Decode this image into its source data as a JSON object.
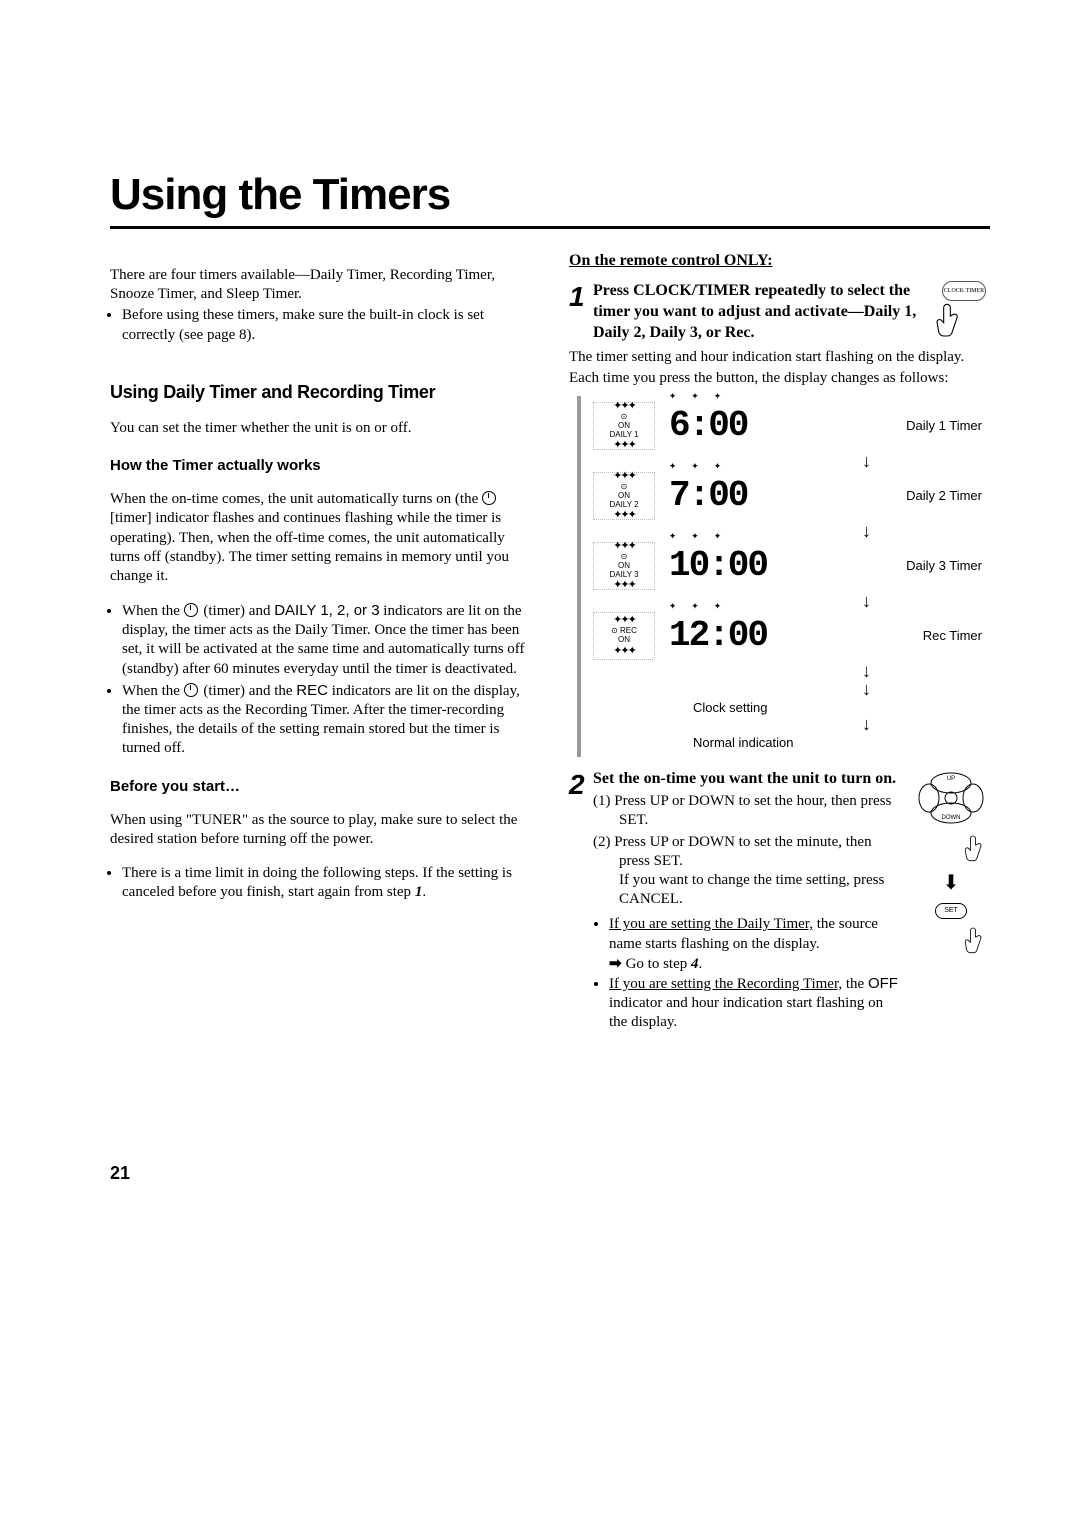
{
  "page": {
    "title": "Using the Timers",
    "page_number": "21",
    "font": {
      "body_family": "Times New Roman",
      "heading_family": "Arial",
      "body_size_pt": 11,
      "title_size_pt": 33
    },
    "colors": {
      "text": "#000000",
      "background": "#ffffff",
      "rule": "#000000",
      "side_rule": "#999999"
    }
  },
  "left": {
    "intro": "There are four timers available—Daily Timer, Recording Timer, Snooze Timer, and Sleep Timer.",
    "intro_bullet": "Before using these timers, make sure the built-in clock is set correctly (see page 8).",
    "section_heading": "Using Daily Timer and Recording Timer",
    "line1": "You can set the timer whether the unit is on or off.",
    "sub_heading_1": "How the Timer actually works",
    "para1_a": "When the on-time comes, the unit automatically turns on (the ",
    "para1_b": " [timer] indicator flashes and continues flashing while the timer is operating). Then, when the off-time comes, the unit automatically turns off (standby). The timer setting remains in memory until you change it.",
    "bullet1_a": "When the ",
    "bullet1_b": " (timer) and ",
    "bullet1_c": " indicators are lit on the display, the timer acts as the Daily Timer. Once the timer has been set, it will be activated at the same time and automatically turns off (standby) after 60 minutes everyday until the timer is deactivated.",
    "bullet1_daily": "DAILY 1, 2, or 3",
    "bullet2_a": "When the ",
    "bullet2_b": " (timer) and the ",
    "bullet2_c": " indicators are lit on the display, the timer acts as the Recording Timer. After the timer-recording finishes, the details of the setting remain stored but the timer is turned off.",
    "bullet2_rec": "REC",
    "sub_heading_2": "Before you start…",
    "para2": "When using \"TUNER\" as the source to play, make sure to select the desired station before turning off the power.",
    "bullet3_a": "There is a time limit in doing the following steps. If the setting is canceled before you finish, start again from step ",
    "bullet3_b": "1",
    "bullet3_c": "."
  },
  "right": {
    "u_heading": "On the remote control ONLY:",
    "step1": {
      "num": "1",
      "bold": "Press CLOCK/TIMER repeatedly to select the timer you want to adjust and activate—Daily 1, Daily 2, Daily 3, or Rec.",
      "icon_button_label": "CLOCK TIMER",
      "p1": "The timer setting and  hour indication start flashing on the display.",
      "p2": "Each time you press the button, the display changes as follows:"
    },
    "chart": {
      "rows": [
        {
          "indicator_lines": [
            "⊙",
            "ON",
            "DAILY 1"
          ],
          "digits": "6:00",
          "label": "Daily 1 Timer"
        },
        {
          "indicator_lines": [
            "⊙",
            "ON",
            "DAILY  2"
          ],
          "digits": "7:00",
          "label": "Daily 2 Timer"
        },
        {
          "indicator_lines": [
            "⊙",
            "ON",
            "DAILY   3"
          ],
          "digits": "10:00",
          "label": "Daily 3 Timer"
        },
        {
          "indicator_lines": [
            "⊙  REC",
            "ON",
            ""
          ],
          "digits": "12:00",
          "label": "Rec Timer"
        }
      ],
      "tail1": "Clock setting",
      "tail2": "Normal indication"
    },
    "step2": {
      "num": "2",
      "bold": "Set the on-time you want the unit to turn on.",
      "item1": "(1) Press UP or DOWN to set the hour, then press SET.",
      "item2_a": "(2) Press UP or DOWN to set the minute, then press SET.",
      "item2_b": "If you want to change the time setting, press CANCEL.",
      "b1_a": "If you are setting the Daily Timer,",
      "b1_b": " the source name starts flashing on the display.",
      "b1_c": "Go to step ",
      "b1_d": "4",
      "b1_e": ".",
      "b2_a": "If you are setting the Recording Timer,",
      "b2_b": " the ",
      "b2_off": "OFF",
      "b2_c": " indicator and hour indication start flashing on the display.",
      "dpad_labels": {
        "up": "UP",
        "down": "DOWN",
        "left": "",
        "right": ""
      },
      "set_label": "SET"
    }
  }
}
